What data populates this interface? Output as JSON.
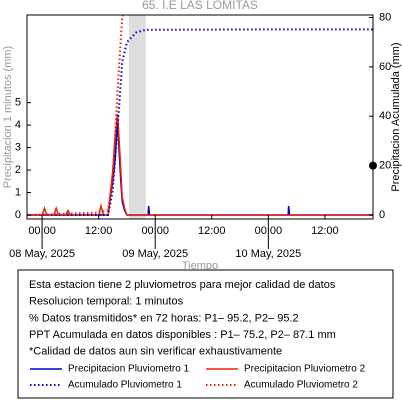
{
  "chart_data": {
    "type": "line",
    "title": "65. I.E LAS LOMITAS",
    "ylabel": "Precipitacion 1 minutos (mm)",
    "y2label": "Precipitacion Acumulada (mm)",
    "xlabel": "Tiempo",
    "xlim": [
      -3.2,
      70.2
    ],
    "xticks": [
      {
        "value": 0,
        "label": "00:00"
      },
      {
        "value": 12,
        "label": "12:00"
      },
      {
        "value": 24,
        "label": "00:00"
      },
      {
        "value": 36,
        "label": "12:00"
      },
      {
        "value": 48,
        "label": "00:00"
      },
      {
        "value": 60,
        "label": "12:00"
      }
    ],
    "date_ticks": [
      {
        "value": 0,
        "label": "08 May, 2025"
      },
      {
        "value": 24,
        "label": "09 May, 2025"
      },
      {
        "value": 48,
        "label": "10 May, 2025"
      }
    ],
    "ylim": [
      0,
      8.9
    ],
    "yticks": [
      0,
      1,
      2,
      3,
      4,
      5
    ],
    "y2lim": [
      0,
      81
    ],
    "y2ticks": [
      0,
      20,
      40,
      60,
      80
    ],
    "shaded_span": [
      18.4,
      22.0
    ],
    "y2_marker": 20,
    "series": [
      {
        "name": "Precipitacion Pluviometro 1",
        "color": "#0000cc",
        "style": "solid",
        "x": [
          -3.2,
          14,
          14.5,
          15,
          15.5,
          16,
          16.3,
          16.7,
          17,
          17.5,
          18,
          22.5,
          22.6,
          22.8,
          52.2,
          52.3,
          52.5,
          70.2
        ],
        "values": [
          0,
          0,
          0.8,
          1.5,
          2.5,
          4.2,
          3.0,
          1.5,
          0.6,
          0.2,
          0,
          0,
          0.4,
          0,
          0,
          0.4,
          0,
          0
        ]
      },
      {
        "name": "Precipitacion Pluviometro 2",
        "color": "#ee2200",
        "style": "solid",
        "x": [
          -3.2,
          0,
          0.5,
          1,
          2.5,
          3,
          3.5,
          5,
          5.5,
          6,
          12,
          12.5,
          13,
          14,
          14.5,
          15,
          15.5,
          16,
          16.3,
          16.7,
          17,
          17.5,
          18,
          70.2
        ],
        "values": [
          0,
          0,
          0.3,
          0,
          0,
          0.3,
          0,
          0,
          0.2,
          0,
          0,
          0.4,
          0,
          0,
          1.0,
          2.0,
          3.5,
          4.5,
          3.5,
          2.0,
          0.8,
          0.3,
          0,
          0
        ]
      },
      {
        "name": "Acumulado Pluviometro 1",
        "color": "#0000cc",
        "style": "dotted",
        "axis": "y2",
        "x": [
          -3.2,
          14,
          15,
          16,
          17,
          18,
          20,
          22,
          52.3,
          70.2
        ],
        "values": [
          0,
          0,
          10,
          35,
          62,
          70,
          74,
          75,
          75.2,
          75.2
        ]
      },
      {
        "name": "Acumulado Pluviometro 2",
        "color": "#ee2200",
        "style": "dotted",
        "axis": "y2",
        "x": [
          -3.2,
          5,
          12,
          14,
          15,
          16,
          17,
          18,
          70.2
        ],
        "values": [
          0,
          0.5,
          1,
          2,
          15,
          50,
          80,
          87.1,
          87.1
        ]
      }
    ],
    "notes": [
      "Esta estacion tiene 2 pluviometros para mejor calidad de datos",
      "Resolucion temporal: 1 minutos",
      "% Datos transmitidos* en 72 horas: P1– 95.2, P2– 95.2",
      "PPT Acumulada en datos disponibles : P1– 75.2, P2– 87.1 mm",
      "*Calidad de datos aun sin verificar exhaustivamente"
    ]
  }
}
